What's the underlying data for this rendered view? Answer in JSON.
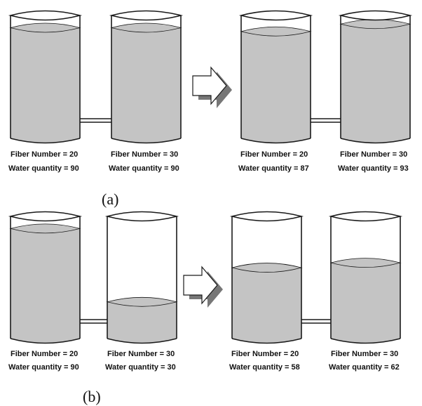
{
  "panels": [
    {
      "caption": "(a)",
      "before": [
        {
          "fiber_label": "Fiber Number = 20",
          "water_label": "Water quantity = 90",
          "fill_level": 0.9
        },
        {
          "fiber_label": "Fiber Number = 30",
          "water_label": "Water quantity = 90",
          "fill_level": 0.9
        }
      ],
      "after": [
        {
          "fiber_label": "Fiber Number = 20",
          "water_label": "Water quantity = 87",
          "fill_level": 0.87
        },
        {
          "fiber_label": "Fiber Number = 30",
          "water_label": "Water quantity = 93",
          "fill_level": 0.93
        }
      ]
    },
    {
      "caption": "(b)",
      "before": [
        {
          "fiber_label": "Fiber Number = 20",
          "water_label": "Water quantity = 90",
          "fill_level": 0.9
        },
        {
          "fiber_label": "Fiber Number = 30",
          "water_label": "Water quantity = 30",
          "fill_level": 0.3
        }
      ],
      "after": [
        {
          "fiber_label": "Fiber Number = 20",
          "water_label": "Water quantity = 58",
          "fill_level": 0.58
        },
        {
          "fiber_label": "Fiber Number = 30",
          "water_label": "Water quantity = 62",
          "fill_level": 0.62
        }
      ]
    }
  ],
  "colors": {
    "water": "#c4c4c4",
    "outline": "#1a1a1a",
    "arrow_shadow": "#777777"
  },
  "icons": {
    "transition": "right-arrow-icon"
  }
}
